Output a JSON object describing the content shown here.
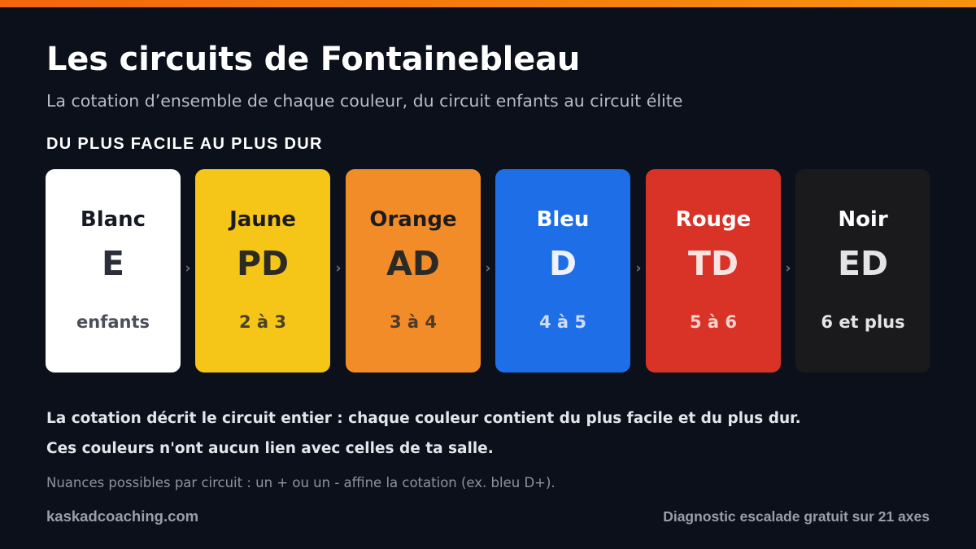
{
  "header": {
    "title": "Les circuits de Fontainebleau",
    "subtitle": "La cotation d’ensemble de chaque couleur, du circuit enfants au circuit élite"
  },
  "section_label": "DU PLUS FACILE AU PLUS DUR",
  "arrow_glyph": "›",
  "circuits": [
    {
      "name": "Blanc",
      "grade": "E",
      "level": "enfants",
      "bg": "#ffffff",
      "name_color": "#161a24",
      "grade_color": "#2a2f3a",
      "level_color": "#4a4f5a",
      "icon": "card-white"
    },
    {
      "name": "Jaune",
      "grade": "PD",
      "level": "2 à 3",
      "bg": "#f5c518",
      "name_color": "#1b1c1f",
      "grade_color": "#2b2a23",
      "level_color": "#4a4228",
      "icon": "card-yellow"
    },
    {
      "name": "Orange",
      "grade": "AD",
      "level": "3 à 4",
      "bg": "#f28c28",
      "name_color": "#1b1c1f",
      "grade_color": "#2b2a26",
      "level_color": "#4e3a28",
      "icon": "card-orange"
    },
    {
      "name": "Bleu",
      "grade": "D",
      "level": "4 à 5",
      "bg": "#1e6ee8",
      "name_color": "#ffffff",
      "grade_color": "#eef2ff",
      "level_color": "#cfdcf7",
      "icon": "card-blue"
    },
    {
      "name": "Rouge",
      "grade": "TD",
      "level": "5 à 6",
      "bg": "#d93227",
      "name_color": "#ffffff",
      "grade_color": "#fbe3e1",
      "level_color": "#f6d2cf",
      "icon": "card-red"
    },
    {
      "name": "Noir",
      "grade": "ED",
      "level": "6 et plus",
      "bg": "#1a1a1c",
      "name_color": "#ffffff",
      "grade_color": "#e4e4e6",
      "level_color": "#e4e4e6",
      "icon": "card-black"
    }
  ],
  "explanation": {
    "line1": "La cotation décrit le circuit entier : chaque couleur contient du plus facile et du plus dur.",
    "line2": "Ces couleurs n'ont aucun lien avec celles de ta salle."
  },
  "nuance": "Nuances possibles par circuit : un + ou un - affine la cotation (ex. bleu D+).",
  "footer": {
    "site": "kaskadcoaching.com",
    "cta": "Diagnostic escalade gratuit sur 21 axes"
  },
  "colors": {
    "background": "#0b101a",
    "accent_start": "#f2670c",
    "accent_end": "#f7930f"
  }
}
